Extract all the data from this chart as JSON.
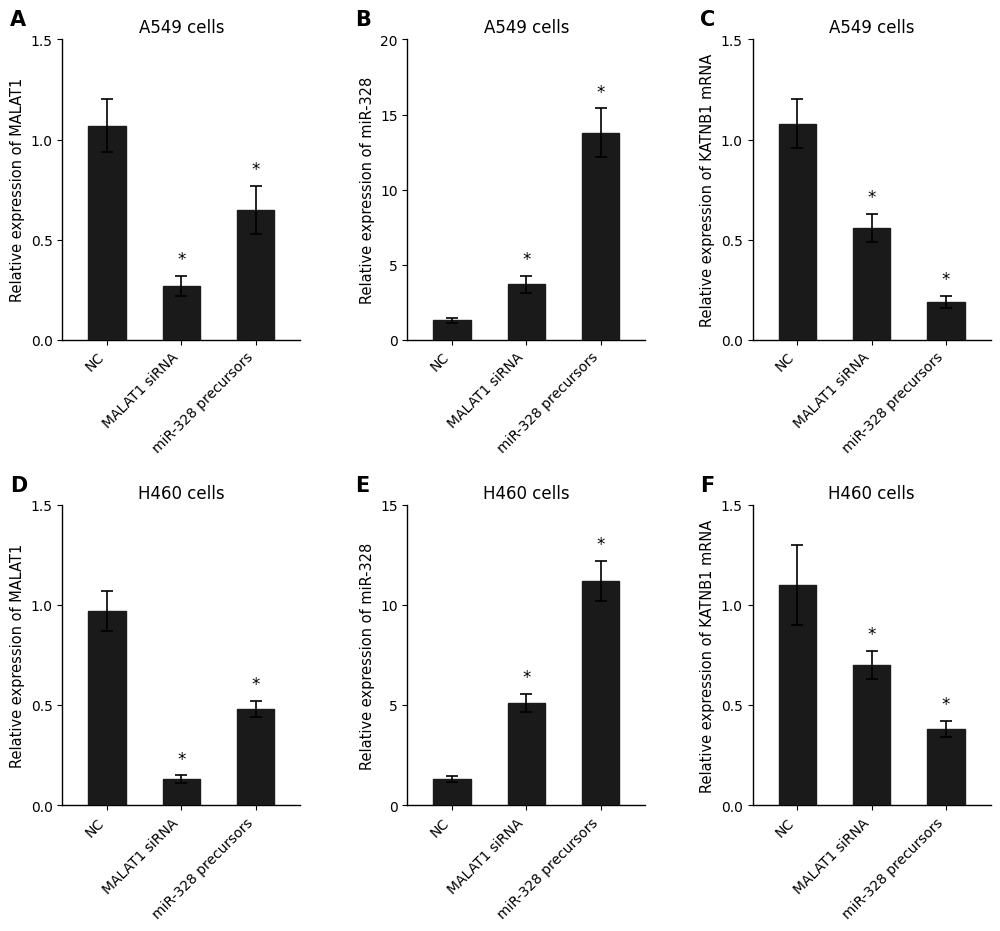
{
  "panels": [
    {
      "label": "A",
      "title": "A549 cells",
      "ylabel": "Relative expression of MALAT1",
      "categories": [
        "NC",
        "MALAT1 siRNA",
        "miR-328 precursors"
      ],
      "values": [
        1.07,
        0.27,
        0.65
      ],
      "errors": [
        0.13,
        0.05,
        0.12
      ],
      "sig": [
        false,
        true,
        true
      ],
      "ylim": [
        0,
        1.5
      ],
      "yticks": [
        0.0,
        0.5,
        1.0,
        1.5
      ]
    },
    {
      "label": "B",
      "title": "A549 cells",
      "ylabel": "Relative expression of miR-328",
      "categories": [
        "NC",
        "MALAT1 siRNA",
        "miR-328 precursors"
      ],
      "values": [
        1.3,
        3.7,
        13.8
      ],
      "errors": [
        0.15,
        0.55,
        1.6
      ],
      "sig": [
        false,
        true,
        true
      ],
      "ylim": [
        0,
        20
      ],
      "yticks": [
        0,
        5,
        10,
        15,
        20
      ]
    },
    {
      "label": "C",
      "title": "A549 cells",
      "ylabel": "Relative expression of KATNB1 mRNA",
      "categories": [
        "NC",
        "MALAT1 siRNA",
        "miR-328 precursors"
      ],
      "values": [
        1.08,
        0.56,
        0.19
      ],
      "errors": [
        0.12,
        0.07,
        0.03
      ],
      "sig": [
        false,
        true,
        true
      ],
      "ylim": [
        0,
        1.5
      ],
      "yticks": [
        0.0,
        0.5,
        1.0,
        1.5
      ]
    },
    {
      "label": "D",
      "title": "H460 cells",
      "ylabel": "Relative expression of MALAT1",
      "categories": [
        "NC",
        "MALAT1 siRNA",
        "miR-328 precursors"
      ],
      "values": [
        0.97,
        0.13,
        0.48
      ],
      "errors": [
        0.1,
        0.02,
        0.04
      ],
      "sig": [
        false,
        true,
        true
      ],
      "ylim": [
        0,
        1.5
      ],
      "yticks": [
        0.0,
        0.5,
        1.0,
        1.5
      ]
    },
    {
      "label": "E",
      "title": "H460 cells",
      "ylabel": "Relative expression of miR-328",
      "categories": [
        "NC",
        "MALAT1 siRNA",
        "miR-328 precursors"
      ],
      "values": [
        1.3,
        5.1,
        11.2
      ],
      "errors": [
        0.15,
        0.45,
        1.0
      ],
      "sig": [
        false,
        true,
        true
      ],
      "ylim": [
        0,
        15
      ],
      "yticks": [
        0,
        5,
        10,
        15
      ]
    },
    {
      "label": "F",
      "title": "H460 cells",
      "ylabel": "Relative expression of KATNB1 mRNA",
      "categories": [
        "NC",
        "MALAT1 siRNA",
        "miR-328 precursors"
      ],
      "values": [
        1.1,
        0.7,
        0.38
      ],
      "errors": [
        0.2,
        0.07,
        0.04
      ],
      "sig": [
        false,
        true,
        true
      ],
      "ylim": [
        0,
        1.5
      ],
      "yticks": [
        0.0,
        0.5,
        1.0,
        1.5
      ]
    }
  ],
  "bar_color": "#1a1a1a",
  "bar_width": 0.5,
  "background_color": "#ffffff",
  "tick_fontsize": 10,
  "label_fontsize": 10.5,
  "title_fontsize": 12,
  "panel_label_fontsize": 15,
  "star_fontsize": 12,
  "capsize": 4,
  "elinewidth": 1.2,
  "ecapthick": 1.2
}
